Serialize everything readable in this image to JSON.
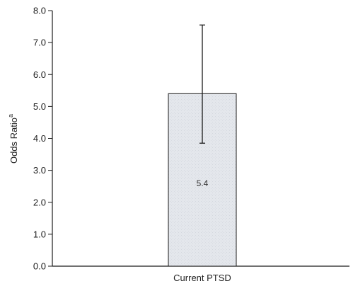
{
  "chart_data": {
    "type": "bar",
    "categories": [
      "Current PTSD"
    ],
    "values": [
      5.4
    ],
    "data_labels": [
      "5.4"
    ],
    "error_bars": [
      {
        "low": 3.85,
        "high": 7.55
      }
    ],
    "xlabel": "",
    "ylabel": "Odds Ratio",
    "ylabel_superscript": "a",
    "ylim": [
      0,
      8
    ],
    "yticks": [
      0,
      1,
      2,
      3,
      4,
      5,
      6,
      7,
      8
    ],
    "ytick_labels": [
      "0.0",
      "1.0",
      "2.0",
      "3.0",
      "4.0",
      "5.0",
      "6.0",
      "7.0",
      "8.0"
    ],
    "grid": false,
    "legend": "none",
    "colors": {
      "bar_fill": "#e4e7ec",
      "bar_stroke": "#1a1a1a",
      "axis": "#1a1a1a"
    }
  }
}
